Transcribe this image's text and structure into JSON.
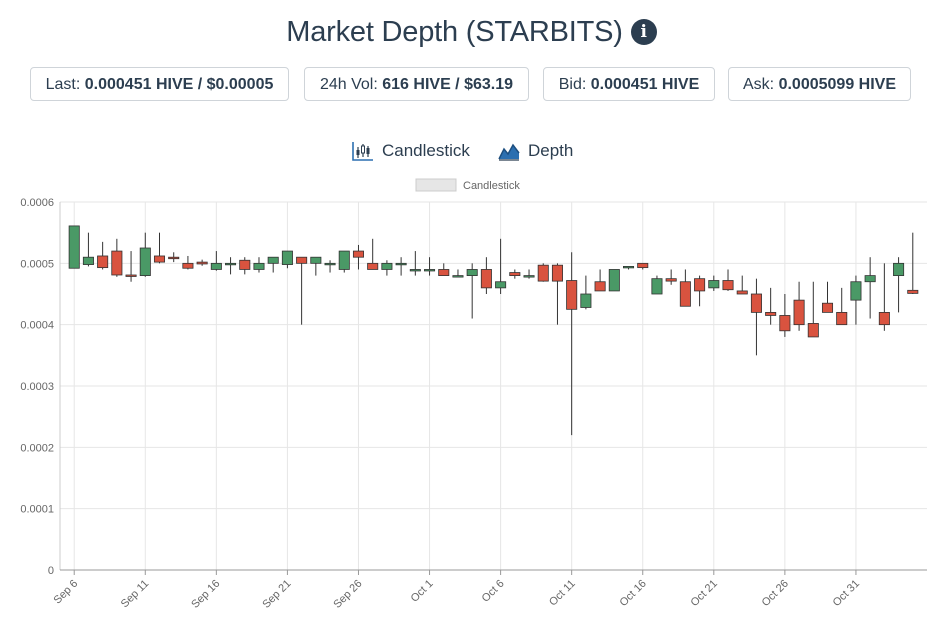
{
  "header": {
    "title": "Market Depth (STARBITS)",
    "info_icon": "info-icon"
  },
  "stats": {
    "last_label": "Last:",
    "last_value": "0.000451 HIVE / $0.00005",
    "vol_label": "24h Vol:",
    "vol_value": "616 HIVE / $63.19",
    "bid_label": "Bid:",
    "bid_value": "0.000451 HIVE",
    "ask_label": "Ask:",
    "ask_value": "0.0005099 HIVE"
  },
  "tabs": {
    "candlestick_label": "Candlestick",
    "candlestick_icon": "candlestick-chart-icon",
    "depth_label": "Depth",
    "depth_icon": "area-chart-icon"
  },
  "colors": {
    "up": "#4a9966",
    "down": "#d9533f",
    "title": "#2c3e50",
    "grid": "#e6e6e6"
  },
  "chart_data": {
    "type": "candlestick",
    "legend": [
      "Candlestick"
    ],
    "legend_position": "top-center",
    "grid": true,
    "ylim": [
      0,
      0.0006
    ],
    "yticks": [
      "0",
      "0.0001",
      "0.0002",
      "0.0003",
      "0.0004",
      "0.0005",
      "0.0006"
    ],
    "xticks": [
      "Sep 6",
      "Sep 11",
      "Sep 16",
      "Sep 21",
      "Sep 26",
      "Oct 1",
      "Oct 6",
      "Oct 11",
      "Oct 16",
      "Oct 21",
      "Oct 26",
      "Oct 31"
    ],
    "xlim": [
      "Sep 5",
      "Nov 5"
    ],
    "candles": [
      {
        "date": "Sep 6",
        "o": 0.000492,
        "h": 0.000561,
        "l": 0.000492,
        "c": 0.000561
      },
      {
        "date": "Sep 7",
        "o": 0.000498,
        "h": 0.00055,
        "l": 0.000495,
        "c": 0.00051
      },
      {
        "date": "Sep 8",
        "o": 0.000512,
        "h": 0.000535,
        "l": 0.00049,
        "c": 0.000493
      },
      {
        "date": "Sep 9",
        "o": 0.00052,
        "h": 0.00054,
        "l": 0.000478,
        "c": 0.000481
      },
      {
        "date": "Sep 10",
        "o": 0.000481,
        "h": 0.00052,
        "l": 0.00047,
        "c": 0.00048
      },
      {
        "date": "Sep 11",
        "o": 0.00048,
        "h": 0.00055,
        "l": 0.000478,
        "c": 0.000525
      },
      {
        "date": "Sep 12",
        "o": 0.000512,
        "h": 0.00055,
        "l": 0.0005,
        "c": 0.000502
      },
      {
        "date": "Sep 13",
        "o": 0.00051,
        "h": 0.000518,
        "l": 0.000502,
        "c": 0.000509
      },
      {
        "date": "Sep 14",
        "o": 0.0005,
        "h": 0.000512,
        "l": 0.00049,
        "c": 0.000492
      },
      {
        "date": "Sep 15",
        "o": 0.000502,
        "h": 0.000506,
        "l": 0.000496,
        "c": 0.000499
      },
      {
        "date": "Sep 16",
        "o": 0.00049,
        "h": 0.00052,
        "l": 0.000488,
        "c": 0.0005
      },
      {
        "date": "Sep 17",
        "o": 0.0005,
        "h": 0.00051,
        "l": 0.000482,
        "c": 0.0005
      },
      {
        "date": "Sep 18",
        "o": 0.000505,
        "h": 0.00051,
        "l": 0.000482,
        "c": 0.00049
      },
      {
        "date": "Sep 19",
        "o": 0.00049,
        "h": 0.00051,
        "l": 0.000485,
        "c": 0.0005
      },
      {
        "date": "Sep 20",
        "o": 0.0005,
        "h": 0.00051,
        "l": 0.000485,
        "c": 0.00051
      },
      {
        "date": "Sep 21",
        "o": 0.000498,
        "h": 0.00052,
        "l": 0.000492,
        "c": 0.00052
      },
      {
        "date": "Sep 22",
        "o": 0.00051,
        "h": 0.00051,
        "l": 0.0004,
        "c": 0.0005
      },
      {
        "date": "Sep 23",
        "o": 0.0005,
        "h": 0.00051,
        "l": 0.00048,
        "c": 0.00051
      },
      {
        "date": "Sep 24",
        "o": 0.0005,
        "h": 0.000505,
        "l": 0.000485,
        "c": 0.0005
      },
      {
        "date": "Sep 25",
        "o": 0.00049,
        "h": 0.00052,
        "l": 0.000485,
        "c": 0.00052
      },
      {
        "date": "Sep 26",
        "o": 0.00052,
        "h": 0.00053,
        "l": 0.00049,
        "c": 0.00051
      },
      {
        "date": "Sep 27",
        "o": 0.0005,
        "h": 0.00054,
        "l": 0.00049,
        "c": 0.00049
      },
      {
        "date": "Sep 28",
        "o": 0.00049,
        "h": 0.000505,
        "l": 0.00048,
        "c": 0.0005
      },
      {
        "date": "Sep 29",
        "o": 0.0005,
        "h": 0.00051,
        "l": 0.00048,
        "c": 0.0005
      },
      {
        "date": "Sep 30",
        "o": 0.00049,
        "h": 0.00052,
        "l": 0.00048,
        "c": 0.00049
      },
      {
        "date": "Oct 1",
        "o": 0.00049,
        "h": 0.00051,
        "l": 0.00048,
        "c": 0.00049
      },
      {
        "date": "Oct 2",
        "o": 0.00049,
        "h": 0.0005,
        "l": 0.00048,
        "c": 0.00048
      },
      {
        "date": "Oct 3",
        "o": 0.00048,
        "h": 0.00049,
        "l": 0.00048,
        "c": 0.00048
      },
      {
        "date": "Oct 4",
        "o": 0.00048,
        "h": 0.0005,
        "l": 0.00041,
        "c": 0.00049
      },
      {
        "date": "Oct 5",
        "o": 0.00049,
        "h": 0.00051,
        "l": 0.00045,
        "c": 0.00046
      },
      {
        "date": "Oct 6",
        "o": 0.00046,
        "h": 0.00054,
        "l": 0.00045,
        "c": 0.00047
      },
      {
        "date": "Oct 7",
        "o": 0.000485,
        "h": 0.00049,
        "l": 0.000475,
        "c": 0.00048
      },
      {
        "date": "Oct 8",
        "o": 0.00048,
        "h": 0.00049,
        "l": 0.000475,
        "c": 0.00048
      },
      {
        "date": "Oct 9",
        "o": 0.000497,
        "h": 0.0005,
        "l": 0.00047,
        "c": 0.000471
      },
      {
        "date": "Oct 10",
        "o": 0.000497,
        "h": 0.0005,
        "l": 0.0004,
        "c": 0.000471
      },
      {
        "date": "Oct 11",
        "o": 0.000472,
        "h": 0.000518,
        "l": 0.00022,
        "c": 0.000425
      },
      {
        "date": "Oct 12",
        "o": 0.000428,
        "h": 0.00048,
        "l": 0.000425,
        "c": 0.00045
      },
      {
        "date": "Oct 13",
        "o": 0.00047,
        "h": 0.00049,
        "l": 0.000455,
        "c": 0.000455
      },
      {
        "date": "Oct 14",
        "o": 0.000455,
        "h": 0.00049,
        "l": 0.000455,
        "c": 0.00049
      },
      {
        "date": "Oct 15",
        "o": 0.000495,
        "h": 0.000495,
        "l": 0.00049,
        "c": 0.000495
      },
      {
        "date": "Oct 16",
        "o": 0.0005,
        "h": 0.0005,
        "l": 0.00049,
        "c": 0.000493
      },
      {
        "date": "Oct 17",
        "o": 0.00045,
        "h": 0.00048,
        "l": 0.00045,
        "c": 0.000475
      },
      {
        "date": "Oct 18",
        "o": 0.000475,
        "h": 0.00049,
        "l": 0.000465,
        "c": 0.000471
      },
      {
        "date": "Oct 19",
        "o": 0.00047,
        "h": 0.00049,
        "l": 0.00043,
        "c": 0.00043
      },
      {
        "date": "Oct 20",
        "o": 0.000475,
        "h": 0.00048,
        "l": 0.00043,
        "c": 0.000455
      },
      {
        "date": "Oct 21",
        "o": 0.00046,
        "h": 0.00048,
        "l": 0.000455,
        "c": 0.000472
      },
      {
        "date": "Oct 22",
        "o": 0.000472,
        "h": 0.00049,
        "l": 0.000455,
        "c": 0.000457
      },
      {
        "date": "Oct 23",
        "o": 0.000455,
        "h": 0.00048,
        "l": 0.00045,
        "c": 0.00045
      },
      {
        "date": "Oct 24",
        "o": 0.00045,
        "h": 0.000475,
        "l": 0.00035,
        "c": 0.00042
      },
      {
        "date": "Oct 25",
        "o": 0.00042,
        "h": 0.00046,
        "l": 0.0004,
        "c": 0.000415
      },
      {
        "date": "Oct 26",
        "o": 0.000415,
        "h": 0.00045,
        "l": 0.00038,
        "c": 0.00039
      },
      {
        "date": "Oct 27",
        "o": 0.00044,
        "h": 0.00047,
        "l": 0.00039,
        "c": 0.0004
      },
      {
        "date": "Oct 28",
        "o": 0.000402,
        "h": 0.00047,
        "l": 0.00038,
        "c": 0.00038
      },
      {
        "date": "Oct 29",
        "o": 0.000435,
        "h": 0.00047,
        "l": 0.00042,
        "c": 0.00042
      },
      {
        "date": "Oct 30",
        "o": 0.00042,
        "h": 0.00046,
        "l": 0.0004,
        "c": 0.0004
      },
      {
        "date": "Oct 31",
        "o": 0.00044,
        "h": 0.00048,
        "l": 0.0004,
        "c": 0.00047
      },
      {
        "date": "Nov 1",
        "o": 0.00047,
        "h": 0.00051,
        "l": 0.00041,
        "c": 0.00048
      },
      {
        "date": "Nov 2",
        "o": 0.00042,
        "h": 0.0005,
        "l": 0.00039,
        "c": 0.0004
      },
      {
        "date": "Nov 3",
        "o": 0.00048,
        "h": 0.00051,
        "l": 0.00042,
        "c": 0.0005
      },
      {
        "date": "Nov 4",
        "o": 0.000456,
        "h": 0.00055,
        "l": 0.00045,
        "c": 0.000451
      }
    ]
  }
}
